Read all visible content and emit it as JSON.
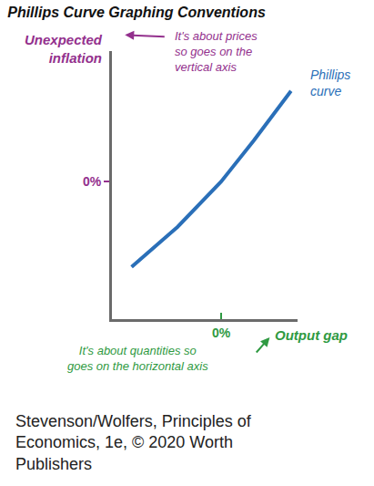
{
  "chart_data": {
    "type": "line",
    "title": "Phillips Curve Graphing Conventions",
    "x_label": "Output gap",
    "y_label": [
      "Unexpected",
      "inflation"
    ],
    "x": [
      -0.82,
      -0.4,
      0,
      0.3,
      0.64
    ],
    "series": [
      {
        "name": "Phillips curve",
        "color": "#2a6fb8",
        "values": [
          -0.62,
          -0.33,
          0.0,
          0.3,
          0.66
        ]
      }
    ],
    "xlim": [
      -1,
      0.7
    ],
    "ylim": [
      -1,
      0.95
    ],
    "xticks": [
      {
        "value": 0,
        "label": "0%"
      }
    ],
    "yticks": [
      {
        "value": 0,
        "label": "0%"
      }
    ],
    "grid": false,
    "annotations": [
      {
        "text": [
          "It's about prices",
          "so goes on the",
          "vertical axis"
        ]
      },
      {
        "text": [
          "It's about quantities so",
          "goes on the horizontal axis"
        ]
      }
    ],
    "source": [
      "Stevenson/Wolfers, Principles of",
      "Economics, 1e, © 2020 Worth",
      "Publishers"
    ]
  }
}
